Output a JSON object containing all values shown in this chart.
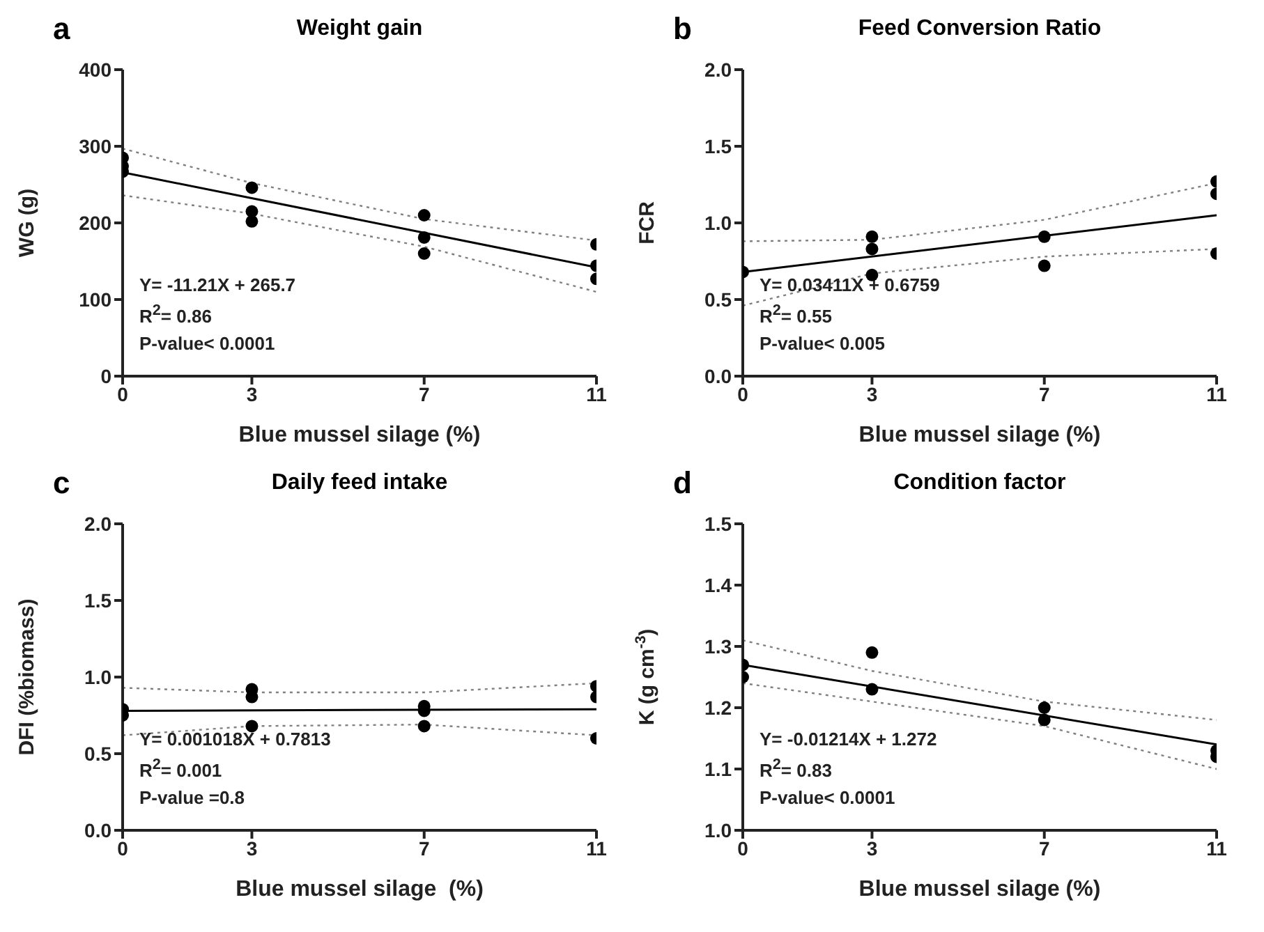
{
  "chart_data": [
    {
      "type": "scatter",
      "title": "Weight gain",
      "xlabel": "Blue mussel silage (%)",
      "ylabel": "WG (g)",
      "xlim": [
        0,
        11
      ],
      "xticks": [
        0,
        3,
        7,
        11
      ],
      "ylim": [
        0,
        400
      ],
      "yticks": [
        0,
        100,
        200,
        300,
        400
      ],
      "grid": false,
      "marker": "circle",
      "annotations": [
        "a",
        "Y= -11.21X + 265.7",
        "R$^{2}$= 0.86",
        "P-value< 0.0001"
      ],
      "series": [
        {
          "type": "scatter",
          "color": "#000000",
          "x": [
            0,
            0,
            0,
            3,
            3,
            3,
            7,
            7,
            7,
            11,
            11,
            11
          ],
          "values": [
            285,
            274,
            267,
            246,
            215,
            202,
            210,
            181,
            160,
            172,
            144,
            127
          ]
        },
        {
          "type": "line",
          "color": "#000000",
          "line_style": "solid",
          "marker": "none",
          "x": [
            0,
            11
          ],
          "values": [
            266,
            142
          ]
        },
        {
          "type": "line",
          "color": "#808080",
          "line_style": "dotted",
          "marker": "none",
          "x": [
            0,
            3,
            7,
            11
          ],
          "values": [
            297,
            252,
            205,
            177
          ]
        },
        {
          "type": "line",
          "color": "#808080",
          "line_style": "dotted",
          "marker": "none",
          "x": [
            0,
            3,
            7,
            11
          ],
          "values": [
            236,
            212,
            169,
            110
          ]
        }
      ]
    },
    {
      "type": "scatter",
      "title": "Feed Conversion Ratio",
      "xlabel": "Blue mussel silage (%)",
      "ylabel": "FCR",
      "xlim": [
        0,
        11
      ],
      "xticks": [
        0,
        3,
        7,
        11
      ],
      "ylim": [
        0,
        2.0
      ],
      "yticks": [
        {
          "value": 0,
          "label": "0.0"
        },
        0.5,
        {
          "value": 1,
          "label": "1.0"
        },
        1.5,
        {
          "value": 2,
          "label": "2.0"
        }
      ],
      "grid": false,
      "marker": "circle",
      "annotations": [
        "b",
        "Y= 0.03411X + 0.6759",
        "R$^{2}$= 0.55",
        "P-value< 0.005"
      ],
      "series": [
        {
          "type": "scatter",
          "color": "#000000",
          "x": [
            0,
            3,
            3,
            3,
            7,
            7,
            11,
            11,
            11
          ],
          "values": [
            0.68,
            0.91,
            0.83,
            0.66,
            0.91,
            0.72,
            1.27,
            1.19,
            0.8
          ]
        },
        {
          "type": "line",
          "color": "#000000",
          "line_style": "solid",
          "marker": "none",
          "x": [
            0,
            11
          ],
          "values": [
            0.68,
            1.05
          ]
        },
        {
          "type": "line",
          "color": "#808080",
          "line_style": "dotted",
          "marker": "none",
          "x": [
            0,
            3,
            7,
            11
          ],
          "values": [
            0.88,
            0.89,
            1.02,
            1.26
          ]
        },
        {
          "type": "line",
          "color": "#808080",
          "line_style": "dotted",
          "marker": "none",
          "x": [
            0,
            3,
            7,
            11
          ],
          "values": [
            0.46,
            0.67,
            0.78,
            0.83
          ]
        }
      ]
    },
    {
      "type": "scatter",
      "title": "Daily feed intake",
      "xlabel": "Blue mussel silage  (%)",
      "ylabel": "DFI (%biomass)",
      "xlim": [
        0,
        11
      ],
      "xticks": [
        0,
        3,
        7,
        11
      ],
      "ylim": [
        0,
        2.0
      ],
      "yticks": [
        {
          "value": 0,
          "label": "0.0"
        },
        0.5,
        {
          "value": 1,
          "label": "1.0"
        },
        1.5,
        {
          "value": 2,
          "label": "2.0"
        }
      ],
      "grid": false,
      "marker": "circle",
      "annotations": [
        "c",
        "Y= 0.001018X + 0.7813",
        "R$^{2}$= 0.001",
        "P-value =0.8"
      ],
      "series": [
        {
          "type": "scatter",
          "color": "#000000",
          "x": [
            0,
            0,
            3,
            3,
            3,
            7,
            7,
            7,
            11,
            11,
            11
          ],
          "values": [
            0.79,
            0.75,
            0.92,
            0.87,
            0.68,
            0.81,
            0.78,
            0.68,
            0.94,
            0.87,
            0.6
          ]
        },
        {
          "type": "line",
          "color": "#000000",
          "line_style": "solid",
          "marker": "none",
          "x": [
            0,
            11
          ],
          "values": [
            0.78,
            0.79
          ]
        },
        {
          "type": "line",
          "color": "#808080",
          "line_style": "dotted",
          "marker": "none",
          "x": [
            0,
            3,
            7,
            11
          ],
          "values": [
            0.93,
            0.9,
            0.9,
            0.96
          ]
        },
        {
          "type": "line",
          "color": "#808080",
          "line_style": "dotted",
          "marker": "none",
          "x": [
            0,
            3,
            7,
            11
          ],
          "values": [
            0.62,
            0.68,
            0.69,
            0.62
          ]
        }
      ]
    },
    {
      "type": "scatter",
      "title": "Condition factor",
      "xlabel": "Blue mussel silage (%)",
      "ylabel": "K (g cm$^{-3}$)",
      "xlim": [
        0,
        11
      ],
      "xticks": [
        0,
        3,
        7,
        11
      ],
      "ylim": [
        1.0,
        1.5
      ],
      "yticks": [
        {
          "value": 1,
          "label": "1.0"
        },
        1.1,
        1.2,
        1.3,
        1.4,
        1.5
      ],
      "grid": false,
      "marker": "circle",
      "annotations": [
        "d",
        "Y= -0.01214X + 1.272",
        "R$^{2}$= 0.83",
        "P-value< 0.0001"
      ],
      "series": [
        {
          "type": "scatter",
          "color": "#000000",
          "x": [
            0,
            0,
            3,
            3,
            7,
            7,
            11,
            11
          ],
          "values": [
            1.27,
            1.25,
            1.29,
            1.23,
            1.2,
            1.18,
            1.13,
            1.12
          ]
        },
        {
          "type": "line",
          "color": "#000000",
          "line_style": "solid",
          "marker": "none",
          "x": [
            0,
            11
          ],
          "values": [
            1.27,
            1.14
          ]
        },
        {
          "type": "line",
          "color": "#808080",
          "line_style": "dotted",
          "marker": "none",
          "x": [
            0,
            3,
            7,
            11
          ],
          "values": [
            1.31,
            1.26,
            1.21,
            1.18
          ]
        },
        {
          "type": "line",
          "color": "#808080",
          "line_style": "dotted",
          "marker": "none",
          "x": [
            0,
            3,
            7,
            11
          ],
          "values": [
            1.24,
            1.21,
            1.17,
            1.1
          ]
        }
      ]
    }
  ]
}
